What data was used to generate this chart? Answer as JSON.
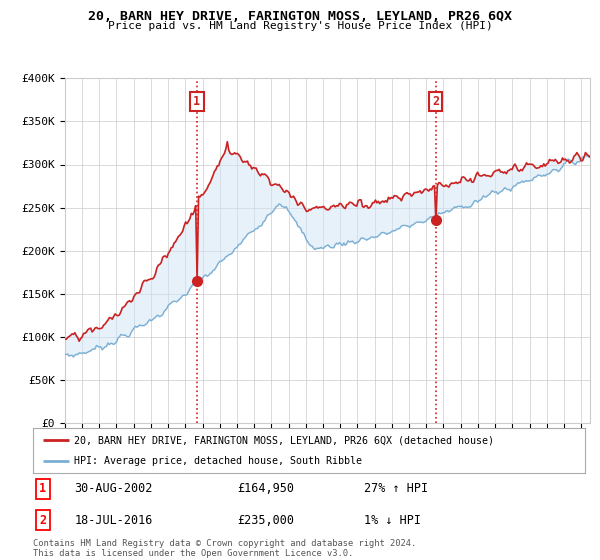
{
  "title": "20, BARN HEY DRIVE, FARINGTON MOSS, LEYLAND, PR26 6QX",
  "subtitle": "Price paid vs. HM Land Registry's House Price Index (HPI)",
  "ylabel_ticks": [
    "£0",
    "£50K",
    "£100K",
    "£150K",
    "£200K",
    "£250K",
    "£300K",
    "£350K",
    "£400K"
  ],
  "ytick_values": [
    0,
    50000,
    100000,
    150000,
    200000,
    250000,
    300000,
    350000,
    400000
  ],
  "ylim": [
    0,
    400000
  ],
  "xlim_start": 1995.0,
  "xlim_end": 2025.5,
  "hpi_color": "#7bafd4",
  "hpi_fill_color": "#d0e4f7",
  "price_color": "#cc2222",
  "sale1_x": 2002.66,
  "sale1_y": 164950,
  "sale2_x": 2016.54,
  "sale2_y": 235000,
  "sale1_label": "1",
  "sale2_label": "2",
  "legend_line1": "20, BARN HEY DRIVE, FARINGTON MOSS, LEYLAND, PR26 6QX (detached house)",
  "legend_line2": "HPI: Average price, detached house, South Ribble",
  "table_row1": [
    "1",
    "30-AUG-2002",
    "£164,950",
    "27% ↑ HPI"
  ],
  "table_row2": [
    "2",
    "18-JUL-2016",
    "£235,000",
    "1% ↓ HPI"
  ],
  "footer": "Contains HM Land Registry data © Crown copyright and database right 2024.\nThis data is licensed under the Open Government Licence v3.0.",
  "background_color": "#ffffff",
  "grid_color": "#cccccc"
}
